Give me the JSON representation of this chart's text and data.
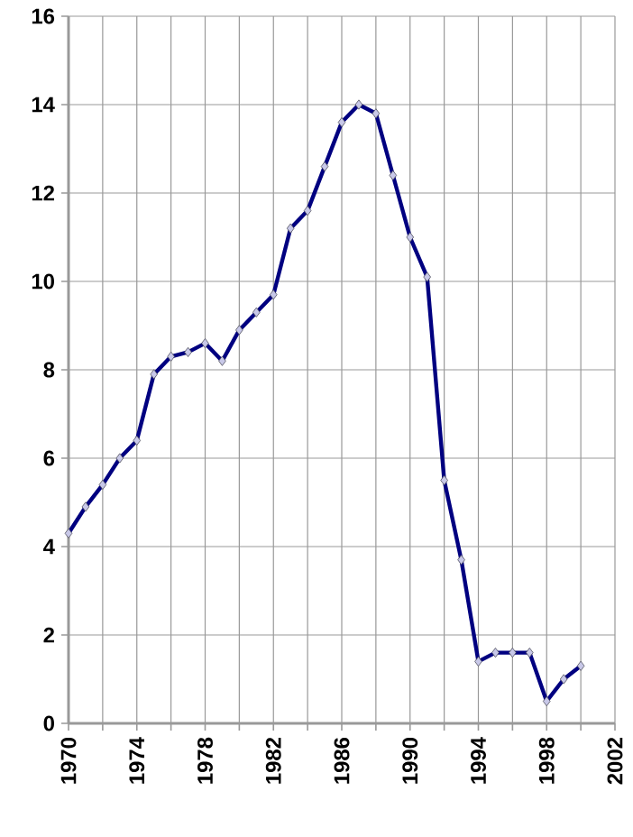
{
  "chart_data": {
    "type": "line",
    "x": [
      1970,
      1971,
      1972,
      1973,
      1974,
      1975,
      1976,
      1977,
      1978,
      1979,
      1980,
      1981,
      1982,
      1983,
      1984,
      1985,
      1986,
      1987,
      1988,
      1989,
      1990,
      1991,
      1992,
      1993,
      1994,
      1995,
      1996,
      1997,
      1998,
      1999,
      2000
    ],
    "series": [
      {
        "color": "#000080",
        "values": [
          4.3,
          4.9,
          5.4,
          6.0,
          6.4,
          7.9,
          8.3,
          8.4,
          8.6,
          8.2,
          8.9,
          9.3,
          9.7,
          11.2,
          11.6,
          12.6,
          13.6,
          14.0,
          13.8,
          12.4,
          11.0,
          10.1,
          5.5,
          3.7,
          1.4,
          1.6,
          1.6,
          1.6,
          0.5,
          1.0,
          1.3
        ]
      }
    ],
    "xlim": [
      1970,
      2002
    ],
    "xticks": [
      1970,
      {
        "value": 1972,
        "label": null
      },
      1974,
      {
        "value": 1976,
        "label": null
      },
      1978,
      {
        "value": 1980,
        "label": null
      },
      1982,
      {
        "value": 1984,
        "label": null
      },
      1986,
      {
        "value": 1988,
        "label": null
      },
      1990,
      {
        "value": 1992,
        "label": null
      },
      1994,
      {
        "value": 1996,
        "label": null
      },
      1998,
      {
        "value": 2000,
        "label": null
      },
      2002
    ],
    "ylim": [
      0,
      16
    ],
    "yticks": [
      0,
      2,
      4,
      6,
      8,
      10,
      12,
      14,
      16
    ],
    "grid": true,
    "marker": "diamond",
    "line_style": "solid"
  }
}
